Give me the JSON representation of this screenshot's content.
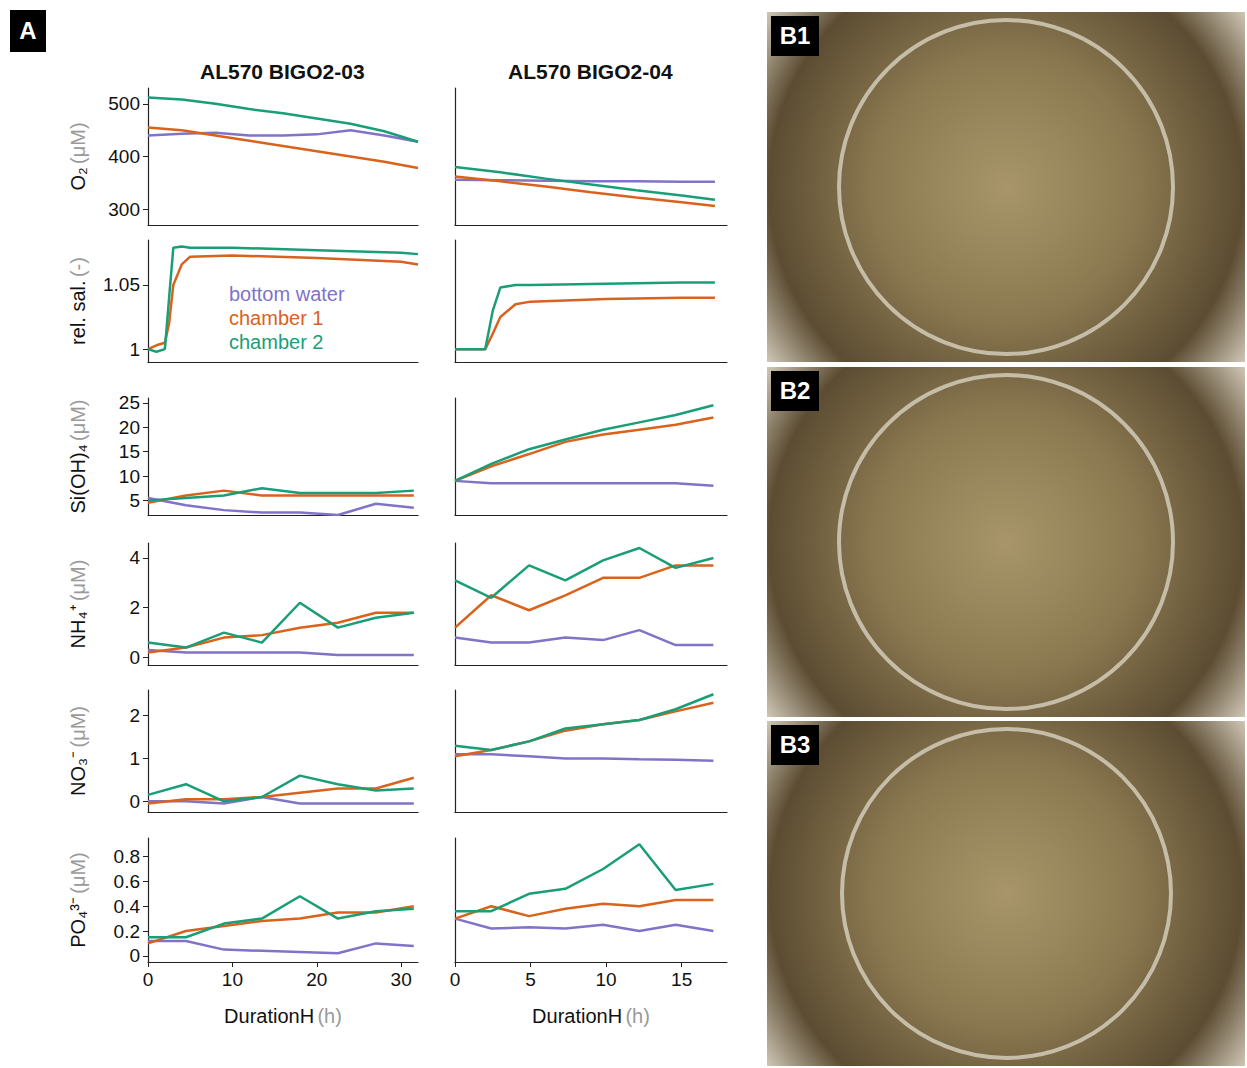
{
  "panel_label": "A",
  "photo_labels": [
    "B1",
    "B2",
    "B3"
  ],
  "chart_data": [
    {
      "type": "line",
      "title": "AL570 BIGO2-03",
      "y_label": "O₂ (μM)",
      "x": [
        0,
        4,
        8,
        12,
        16,
        20,
        24,
        28,
        32
      ],
      "series": [
        {
          "name": "bottom water",
          "color": "#8073c8",
          "values": [
            440,
            443,
            445,
            440,
            440,
            442,
            450,
            440,
            428
          ]
        },
        {
          "name": "chamber 1",
          "color": "#d9621c",
          "values": [
            455,
            450,
            440,
            430,
            420,
            410,
            400,
            390,
            378
          ]
        },
        {
          "name": "chamber 2",
          "color": "#1a9e77",
          "values": [
            512,
            508,
            500,
            490,
            482,
            472,
            462,
            448,
            428
          ]
        }
      ],
      "xlim": [
        0,
        32
      ],
      "xticks": [
        0,
        10,
        20,
        30
      ],
      "ylim": [
        270,
        530
      ],
      "yticks": [
        300,
        400,
        500
      ],
      "tick_labels": "y"
    },
    {
      "type": "line",
      "title": "AL570 BIGO2-04",
      "x": [
        0,
        3,
        6,
        9,
        12,
        15,
        17.2
      ],
      "series": [
        {
          "name": "bottom water",
          "color": "#8073c8",
          "values": [
            356,
            355,
            354,
            353,
            353,
            352,
            352
          ]
        },
        {
          "name": "chamber 1",
          "color": "#d9621c",
          "values": [
            362,
            353,
            343,
            332,
            322,
            313,
            306
          ]
        },
        {
          "name": "chamber 2",
          "color": "#1a9e77",
          "values": [
            380,
            370,
            358,
            347,
            336,
            326,
            318
          ]
        }
      ],
      "xlim": [
        0,
        18
      ],
      "xticks": [
        0,
        5,
        10,
        15
      ],
      "ylim": [
        270,
        530
      ],
      "yticks": [
        300,
        400,
        500
      ],
      "tick_labels": false
    },
    {
      "type": "line",
      "y_label": "rel. sal. (-)",
      "legend": "bottom",
      "x": [
        0,
        1,
        2,
        2.5,
        3,
        4,
        5,
        10,
        20,
        30,
        32
      ],
      "series": [
        {
          "name": "bottom water",
          "color": "#8073c8",
          "values": [
            null,
            null,
            null,
            null,
            null,
            null,
            null,
            null,
            null,
            null,
            null
          ]
        },
        {
          "name": "chamber 1",
          "color": "#d9621c",
          "values": [
            1,
            1.003,
            1.005,
            1.02,
            1.05,
            1.066,
            1.072,
            1.073,
            1.071,
            1.068,
            1.066
          ]
        },
        {
          "name": "chamber 2",
          "color": "#1a9e77",
          "values": [
            1,
            0.998,
            1,
            1.04,
            1.079,
            1.08,
            1.079,
            1.079,
            1.077,
            1.075,
            1.074
          ]
        }
      ],
      "xlim": [
        0,
        32
      ],
      "xticks": [
        0,
        10,
        20,
        30
      ],
      "ylim": [
        0.99,
        1.085
      ],
      "yticks": [
        1,
        1.05
      ],
      "tick_labels": "y"
    },
    {
      "type": "line",
      "x": [
        0,
        1,
        2,
        2.5,
        3,
        4,
        5,
        10,
        15,
        17.2
      ],
      "series": [
        {
          "name": "chamber 1",
          "color": "#d9621c",
          "values": [
            1,
            1,
            1,
            1.012,
            1.025,
            1.035,
            1.037,
            1.039,
            1.04,
            1.04
          ]
        },
        {
          "name": "chamber 2",
          "color": "#1a9e77",
          "values": [
            1,
            1,
            1,
            1.03,
            1.048,
            1.05,
            1.05,
            1.051,
            1.052,
            1.052
          ]
        }
      ],
      "xlim": [
        0,
        18
      ],
      "xticks": [
        0,
        5,
        10,
        15
      ],
      "ylim": [
        0.99,
        1.085
      ],
      "yticks": [
        1,
        1.05
      ],
      "tick_labels": false
    },
    {
      "type": "line",
      "y_label": "Si(OH)₄ (μM)",
      "x": [
        0,
        4.5,
        9,
        13.5,
        18,
        22.5,
        27,
        31.5
      ],
      "series": [
        {
          "name": "bottom water",
          "color": "#8073c8",
          "values": [
            5.5,
            4,
            3,
            2.5,
            2.5,
            2,
            4.3,
            3.5
          ]
        },
        {
          "name": "chamber 1",
          "color": "#d9621c",
          "values": [
            4.5,
            6,
            7,
            6,
            6,
            6,
            6,
            6
          ]
        },
        {
          "name": "chamber 2",
          "color": "#1a9e77",
          "values": [
            5,
            5.5,
            6,
            7.5,
            6.5,
            6.5,
            6.5,
            7
          ]
        }
      ],
      "xlim": [
        0,
        32
      ],
      "xticks": [
        0,
        10,
        20,
        30
      ],
      "ylim": [
        2,
        26
      ],
      "yticks": [
        5,
        10,
        15,
        20,
        25
      ],
      "tick_labels": "y"
    },
    {
      "type": "line",
      "x": [
        0,
        2.4,
        4.9,
        7.3,
        9.8,
        12.2,
        14.6,
        17.1
      ],
      "series": [
        {
          "name": "bottom water",
          "color": "#8073c8",
          "values": [
            9,
            8.5,
            8.5,
            8.5,
            8.5,
            8.5,
            8.5,
            8
          ]
        },
        {
          "name": "chamber 1",
          "color": "#d9621c",
          "values": [
            9,
            12,
            14.5,
            17,
            18.5,
            19.5,
            20.5,
            22
          ]
        },
        {
          "name": "chamber 2",
          "color": "#1a9e77",
          "values": [
            9,
            12.5,
            15.5,
            17.5,
            19.5,
            21,
            22.5,
            24.5
          ]
        }
      ],
      "xlim": [
        0,
        18
      ],
      "xticks": [
        0,
        5,
        10,
        15
      ],
      "ylim": [
        2,
        26
      ],
      "yticks": [
        5,
        10,
        15,
        20,
        25
      ],
      "tick_labels": false
    },
    {
      "type": "line",
      "y_label": "NH₄⁺ (μM)",
      "x": [
        0,
        4.5,
        9,
        13.5,
        18,
        22.5,
        27,
        31.5
      ],
      "series": [
        {
          "name": "bottom water",
          "color": "#8073c8",
          "values": [
            0.3,
            0.2,
            0.2,
            0.2,
            0.2,
            0.1,
            0.1,
            0.1
          ]
        },
        {
          "name": "chamber 1",
          "color": "#d9621c",
          "values": [
            0.2,
            0.4,
            0.8,
            0.9,
            1.2,
            1.4,
            1.8,
            1.8
          ]
        },
        {
          "name": "chamber 2",
          "color": "#1a9e77",
          "values": [
            0.6,
            0.4,
            1,
            0.6,
            2.2,
            1.2,
            1.6,
            1.8
          ]
        }
      ],
      "xlim": [
        0,
        32
      ],
      "xticks": [
        0,
        10,
        20,
        30
      ],
      "ylim": [
        -0.3,
        4.6
      ],
      "yticks": [
        0,
        2,
        4
      ],
      "tick_labels": "y"
    },
    {
      "type": "line",
      "x": [
        0,
        2.4,
        4.9,
        7.3,
        9.8,
        12.2,
        14.6,
        17.1
      ],
      "series": [
        {
          "name": "bottom water",
          "color": "#8073c8",
          "values": [
            0.8,
            0.6,
            0.6,
            0.8,
            0.7,
            1.1,
            0.5,
            0.5
          ]
        },
        {
          "name": "chamber 1",
          "color": "#d9621c",
          "values": [
            1.2,
            2.5,
            1.9,
            2.5,
            3.2,
            3.2,
            3.7,
            3.7
          ]
        },
        {
          "name": "chamber 2",
          "color": "#1a9e77",
          "values": [
            3.1,
            2.4,
            3.7,
            3.1,
            3.9,
            4.4,
            3.6,
            4
          ]
        }
      ],
      "xlim": [
        0,
        18
      ],
      "xticks": [
        0,
        5,
        10,
        15
      ],
      "ylim": [
        -0.3,
        4.6
      ],
      "yticks": [
        0,
        2,
        4
      ],
      "tick_labels": false
    },
    {
      "type": "line",
      "y_label": "NO₃⁻ (μM)",
      "x": [
        0,
        4.5,
        9,
        13.5,
        18,
        22.5,
        27,
        31.5
      ],
      "series": [
        {
          "name": "bottom water",
          "color": "#8073c8",
          "values": [
            0,
            0,
            -0.05,
            0.1,
            -0.05,
            -0.05,
            -0.05,
            -0.05
          ]
        },
        {
          "name": "chamber 1",
          "color": "#d9621c",
          "values": [
            -0.05,
            0.05,
            0.05,
            0.1,
            0.2,
            0.3,
            0.3,
            0.55
          ]
        },
        {
          "name": "chamber 2",
          "color": "#1a9e77",
          "values": [
            0.15,
            0.4,
            0,
            0.1,
            0.6,
            0.4,
            0.25,
            0.3
          ]
        }
      ],
      "xlim": [
        0,
        32
      ],
      "xticks": [
        0,
        10,
        20,
        30
      ],
      "ylim": [
        -0.25,
        2.6
      ],
      "yticks": [
        0,
        1,
        2
      ],
      "tick_labels": "y"
    },
    {
      "type": "line",
      "x": [
        0,
        2.4,
        4.9,
        7.3,
        9.8,
        12.2,
        14.6,
        17.1
      ],
      "series": [
        {
          "name": "bottom water",
          "color": "#8073c8",
          "values": [
            1.1,
            1.1,
            1.05,
            1,
            1,
            0.98,
            0.97,
            0.95
          ]
        },
        {
          "name": "chamber 1",
          "color": "#d9621c",
          "values": [
            1.05,
            1.2,
            1.4,
            1.65,
            1.8,
            1.9,
            2.1,
            2.3
          ]
        },
        {
          "name": "chamber 2",
          "color": "#1a9e77",
          "values": [
            1.3,
            1.2,
            1.4,
            1.7,
            1.8,
            1.9,
            2.15,
            2.5
          ]
        }
      ],
      "xlim": [
        0,
        18
      ],
      "xticks": [
        0,
        5,
        10,
        15
      ],
      "ylim": [
        -0.25,
        2.6
      ],
      "yticks": [
        0,
        1,
        2
      ],
      "tick_labels": false
    },
    {
      "type": "line",
      "y_label": "PO₄³⁻ (μM)",
      "x_label": "DurationH (h)",
      "x": [
        0,
        4.5,
        9,
        13.5,
        18,
        22.5,
        27,
        31.5
      ],
      "series": [
        {
          "name": "bottom water",
          "color": "#8073c8",
          "values": [
            0.12,
            0.12,
            0.05,
            0.04,
            0.03,
            0.02,
            0.1,
            0.08
          ]
        },
        {
          "name": "chamber 1",
          "color": "#d9621c",
          "values": [
            0.1,
            0.2,
            0.24,
            0.28,
            0.3,
            0.35,
            0.35,
            0.4
          ]
        },
        {
          "name": "chamber 2",
          "color": "#1a9e77",
          "values": [
            0.15,
            0.15,
            0.26,
            0.3,
            0.48,
            0.3,
            0.36,
            0.38
          ]
        }
      ],
      "xlim": [
        0,
        32
      ],
      "xticks": [
        0,
        10,
        20,
        30
      ],
      "ylim": [
        -0.05,
        0.95
      ],
      "yticks": [
        0,
        0.2,
        0.4,
        0.6,
        0.8
      ],
      "tick_labels": true
    },
    {
      "type": "line",
      "x_label": "DurationH (h)",
      "x": [
        0,
        2.4,
        4.9,
        7.3,
        9.8,
        12.2,
        14.6,
        17.1
      ],
      "series": [
        {
          "name": "bottom water",
          "color": "#8073c8",
          "values": [
            0.3,
            0.22,
            0.23,
            0.22,
            0.25,
            0.2,
            0.25,
            0.2
          ]
        },
        {
          "name": "chamber 1",
          "color": "#d9621c",
          "values": [
            0.3,
            0.4,
            0.32,
            0.38,
            0.42,
            0.4,
            0.45,
            0.45
          ]
        },
        {
          "name": "chamber 2",
          "color": "#1a9e77",
          "values": [
            0.36,
            0.36,
            0.5,
            0.54,
            0.7,
            0.9,
            0.53,
            0.58
          ]
        }
      ],
      "xlim": [
        0,
        18
      ],
      "xticks": [
        0,
        5,
        10,
        15
      ],
      "ylim": [
        -0.05,
        0.95
      ],
      "yticks": [
        0,
        0.2,
        0.4,
        0.6,
        0.8
      ],
      "tick_labels": "x"
    }
  ]
}
